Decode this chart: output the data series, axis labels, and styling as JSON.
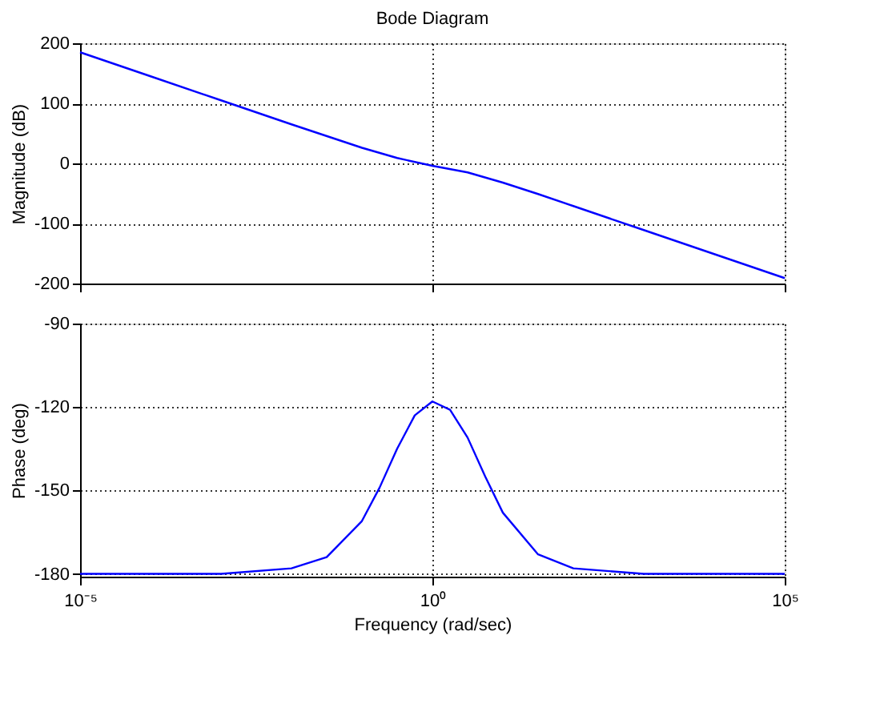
{
  "chart_data": [
    {
      "type": "line",
      "title": "Bode Diagram",
      "ylabel": "Magnitude (dB)",
      "log": "x",
      "grid": true,
      "tick_labels": "y",
      "line_style": "solid",
      "x": [
        1e-05,
        0.0001,
        0.001,
        0.01,
        0.1,
        0.316,
        1,
        3.16,
        10,
        31.6,
        100,
        1000,
        10000,
        100000
      ],
      "series": [
        {
          "color": "#0000ff",
          "values": [
            185,
            145,
            105,
            65,
            26,
            9,
            -4,
            -15,
            -32,
            -51,
            -71,
            -111,
            -151,
            -191
          ]
        }
      ],
      "xlim": [
        1e-05,
        100000
      ],
      "xticks": [
        {
          "value": 1e-05,
          "label": null
        },
        {
          "value": 1,
          "label": null
        },
        {
          "value": 100000,
          "label": null
        }
      ],
      "ylim": [
        -200,
        200
      ],
      "yticks": [
        -200,
        -100,
        0,
        100,
        200
      ]
    },
    {
      "type": "line",
      "xlabel": "Frequency  (rad/sec)",
      "ylabel": "Phase (deg)",
      "log": "x",
      "grid": true,
      "line_style": "solid",
      "x": [
        1e-05,
        0.0001,
        0.001,
        0.01,
        0.0316,
        0.1,
        0.178,
        0.316,
        0.562,
        1,
        1.78,
        3.16,
        5.62,
        10,
        31.6,
        100,
        1000,
        10000,
        100000
      ],
      "series": [
        {
          "color": "#0000ff",
          "values": [
            -180,
            -180,
            -180,
            -178,
            -174,
            -161,
            -149,
            -135,
            -123,
            -118,
            -121,
            -131,
            -145,
            -158,
            -173,
            -178,
            -180,
            -180,
            -180
          ]
        }
      ],
      "xlim": [
        1e-05,
        100000
      ],
      "xticks": [
        {
          "value": 1e-05,
          "label": "10⁻⁵"
        },
        {
          "value": 1,
          "label": "10⁰"
        },
        {
          "value": 100000,
          "label": "10⁵"
        }
      ],
      "ylim": [
        -181,
        -90
      ],
      "yticks": [
        -180,
        -150,
        -120,
        -90
      ]
    }
  ]
}
